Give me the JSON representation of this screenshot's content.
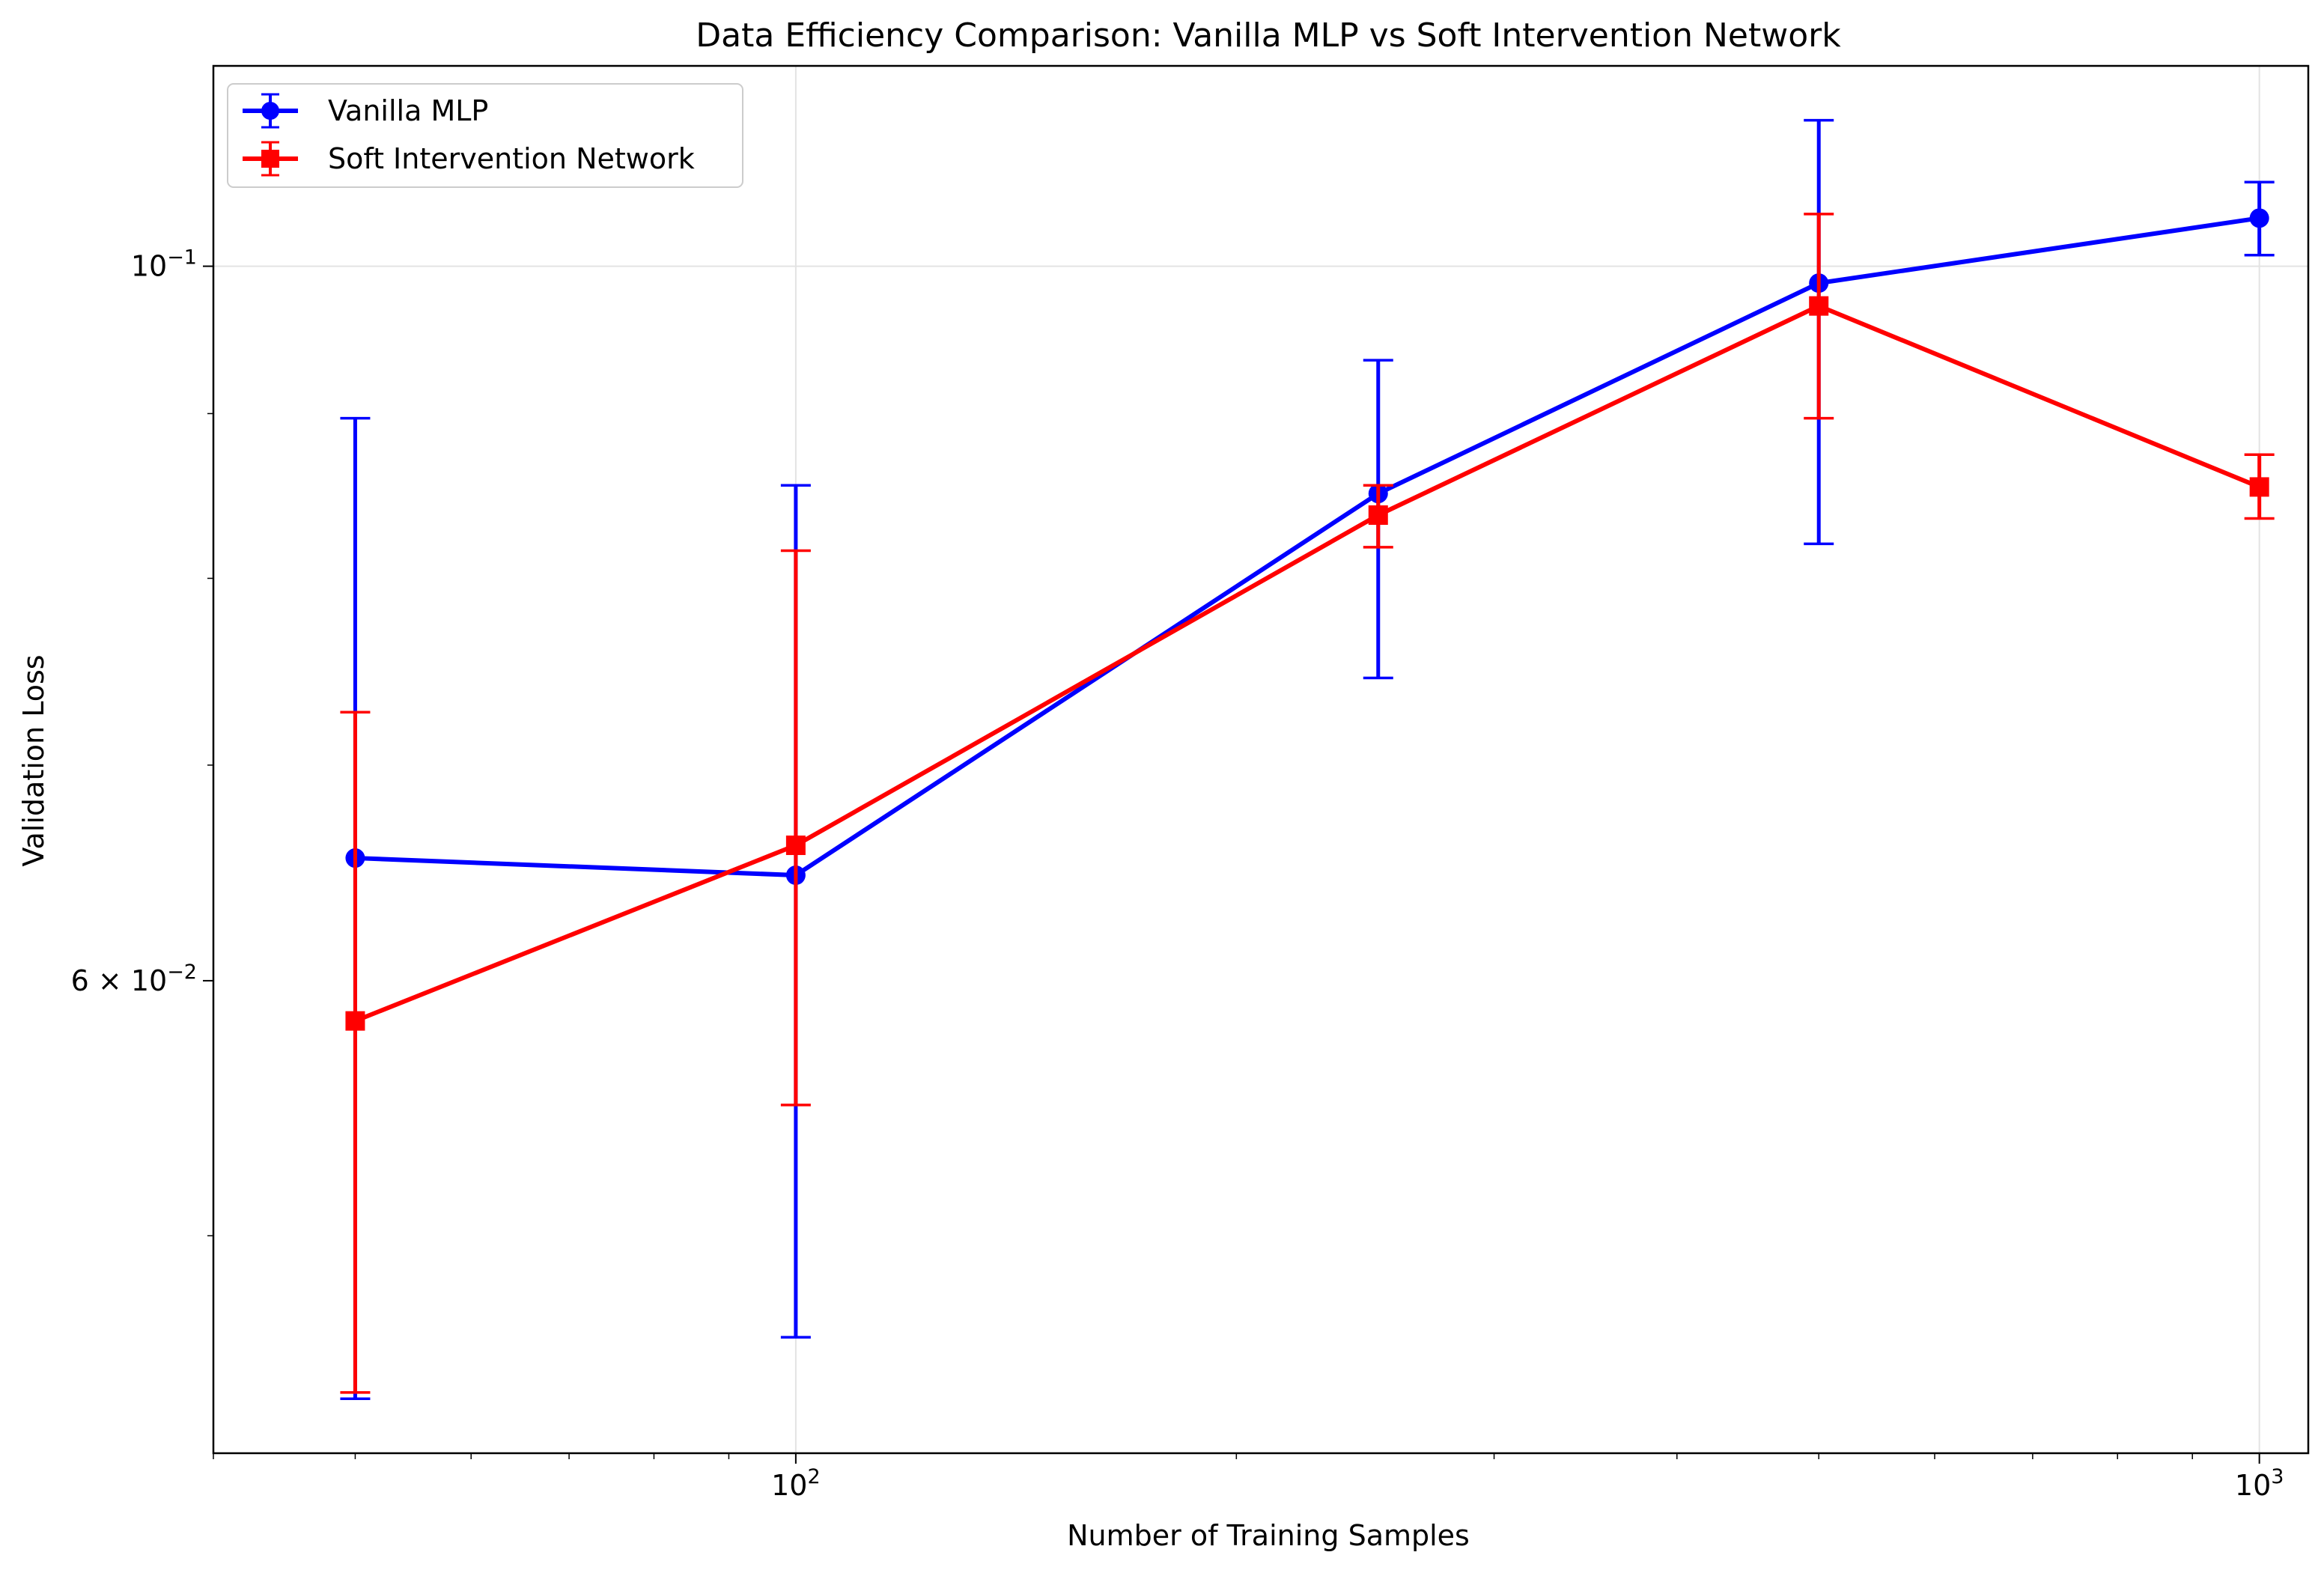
{
  "chart_data": {
    "type": "line",
    "title": "Data Efficiency Comparison: Vanilla MLP vs Soft Intervention Network",
    "xlabel": "Number of Training Samples",
    "ylabel": "Validation Loss",
    "xscale": "log",
    "yscale": "log",
    "xlim": [
      40,
      1080
    ],
    "ylim": [
      0.0428,
      0.1154
    ],
    "x": [
      50,
      100,
      250,
      500,
      1000
    ],
    "x_major_ticks": [
      100,
      1000
    ],
    "x_tick_labels": [
      {
        "base": "10",
        "exp": "2"
      },
      {
        "base": "10",
        "exp": "3"
      }
    ],
    "y_tick_labels": [
      {
        "value": 0.1,
        "pre": "10",
        "exp": "−1"
      },
      {
        "value": 0.06,
        "pre": "6 × 10",
        "exp": "−2"
      }
    ],
    "grid": true,
    "legend_position": "upper-left",
    "series": [
      {
        "name": "Vanilla MLP",
        "color": "#0000ff",
        "marker": "circle",
        "values": [
          0.0655,
          0.0647,
          0.085,
          0.0988,
          0.1035
        ],
        "err_low": [
          0.0445,
          0.0465,
          0.0745,
          0.082,
          0.1008
        ],
        "err_high": [
          0.0897,
          0.0855,
          0.0935,
          0.111,
          0.1062
        ]
      },
      {
        "name": "Soft Intervention Network",
        "color": "#ff0000",
        "marker": "square",
        "values": [
          0.0583,
          0.0661,
          0.0837,
          0.0972,
          0.0854
        ],
        "err_low": [
          0.0447,
          0.0549,
          0.0818,
          0.0897,
          0.0835
        ],
        "err_high": [
          0.0727,
          0.0816,
          0.0855,
          0.1038,
          0.0874
        ]
      }
    ]
  }
}
